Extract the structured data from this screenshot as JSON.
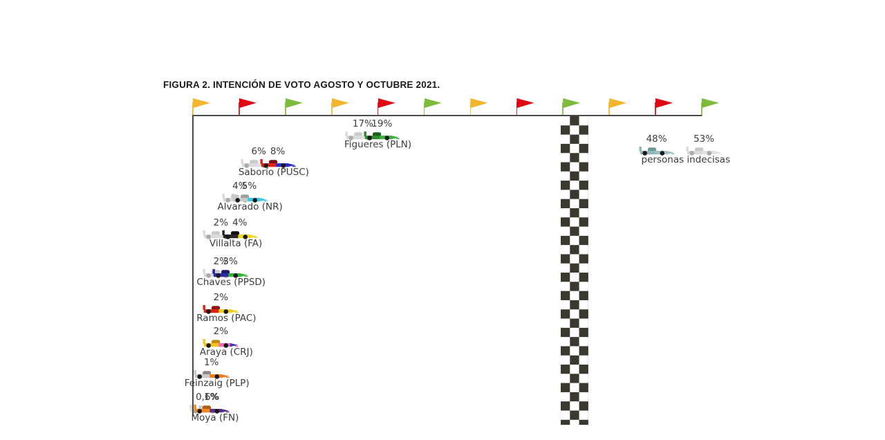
{
  "title": "FIGURA 2. INTENCIÓN DE VOTO AGOSTO Y OCTUBRE 2021.",
  "colors": {
    "track_line": "#4a4a4a",
    "checker_dark": "#3b392f",
    "text": "#3c3c3c",
    "title_text": "#1a1a1a",
    "ghost_car_body": "#dadada",
    "ghost_car_wheel": "#ababab",
    "solid_car_wheel": "#1a1a1a",
    "flag_yellow": "#f2b52b",
    "flag_red": "#e20613",
    "flag_green": "#7dbb3c"
  },
  "flags": [
    "yellow",
    "red",
    "green",
    "yellow",
    "red",
    "green",
    "yellow",
    "red",
    "green",
    "yellow",
    "red",
    "green"
  ],
  "chart_data": {
    "type": "scatter",
    "title": "FIGURA 2. INTENCIÓN DE VOTO AGOSTO Y OCTUBRE 2021.",
    "unit": "%",
    "legend_visible": false,
    "series": [
      {
        "name": "Agosto",
        "style": "ghost-gray-car"
      },
      {
        "name": "Octubre",
        "style": "party-color-car"
      }
    ],
    "x_axis": {
      "min": 0,
      "max_value_shown": 53,
      "ticks_visible": false
    },
    "decor": {
      "finish_line": "checkered vertical strip",
      "top_flags": "yellow/red/green repeating"
    },
    "entries": [
      {
        "label": "Figueres (PLN)",
        "runs": [
          {
            "label": "17%",
            "value": 17,
            "ghost": true
          },
          {
            "label": "19%",
            "value": 19,
            "ghost": false
          }
        ],
        "car": {
          "rear": "#2e8b2e",
          "front": "#3faf3f",
          "cockpit": "#1a5c1a"
        }
      },
      {
        "label": "Saborío (PUSC)",
        "runs": [
          {
            "label": "6%",
            "value": 6,
            "ghost": true
          },
          {
            "label": "8%",
            "value": 8,
            "ghost": false
          }
        ],
        "car": {
          "rear": "#e02318",
          "front": "#2b2bd0",
          "cockpit": "#7a0f0b"
        }
      },
      {
        "label": "Alvarado (NR)",
        "runs": [
          {
            "label": "4%",
            "value": 4,
            "ghost": true
          },
          {
            "label": "5%",
            "value": 5,
            "ghost": false
          }
        ],
        "car": {
          "rear": "#c9c9c9",
          "front": "#38c9e8",
          "cockpit": "#9e9e9e"
        }
      },
      {
        "label": "Villalta (FA)",
        "runs": [
          {
            "label": "2%",
            "value": 2,
            "ghost": true
          },
          {
            "label": "4%",
            "value": 4,
            "ghost": false
          }
        ],
        "car": {
          "rear": "#262626",
          "front": "#f2d51c",
          "cockpit": "#111111"
        }
      },
      {
        "label": "Chaves (PPSD)",
        "runs": [
          {
            "label": "2%",
            "value": 2,
            "ghost": true
          },
          {
            "label": "3%",
            "value": 3,
            "ghost": false
          }
        ],
        "car": {
          "rear": "#2b2ba8",
          "front": "#35b435",
          "cockpit": "#1a1a70"
        }
      },
      {
        "label": "Ramos (PAC)",
        "runs": [
          {
            "label": "2%",
            "value": 2,
            "ghost": false
          }
        ],
        "car": {
          "rear": "#e02318",
          "front": "#f2ce1b",
          "cockpit": "#8f1210"
        }
      },
      {
        "label": "Araya (CRJ)",
        "runs": [
          {
            "label": "2%",
            "value": 2,
            "ghost": false
          }
        ],
        "car": {
          "rear": "#f2c51b",
          "front": "#f06cb4",
          "cockpit": "#c28a12",
          "nose": "#3b3bc0"
        }
      },
      {
        "label": "Feinzaig (PLP)",
        "runs": [
          {
            "label": "1%",
            "value": 1,
            "ghost": false
          }
        ],
        "car": {
          "rear": "#c9c9c9",
          "front": "#f07d1f",
          "cockpit": "#8c8c8c"
        }
      },
      {
        "label": "Moya (FN)",
        "runs": [
          {
            "label": "0,6%",
            "value": 0.6,
            "ghost": true
          },
          {
            "label": "1%",
            "value": 1,
            "ghost": false
          }
        ],
        "car": {
          "rear": "#f08a1f",
          "front": "#5a2d87",
          "cockpit": "#b05e12"
        }
      },
      {
        "label": "personas indecisas",
        "runs": [
          {
            "label": "48%",
            "value": 48,
            "ghost": false
          },
          {
            "label": "53%",
            "value": 53,
            "ghost": true
          }
        ],
        "car": {
          "rear": "#8fb7b7",
          "front": "#9fc2c2",
          "cockpit": "#6e9898"
        }
      }
    ]
  }
}
